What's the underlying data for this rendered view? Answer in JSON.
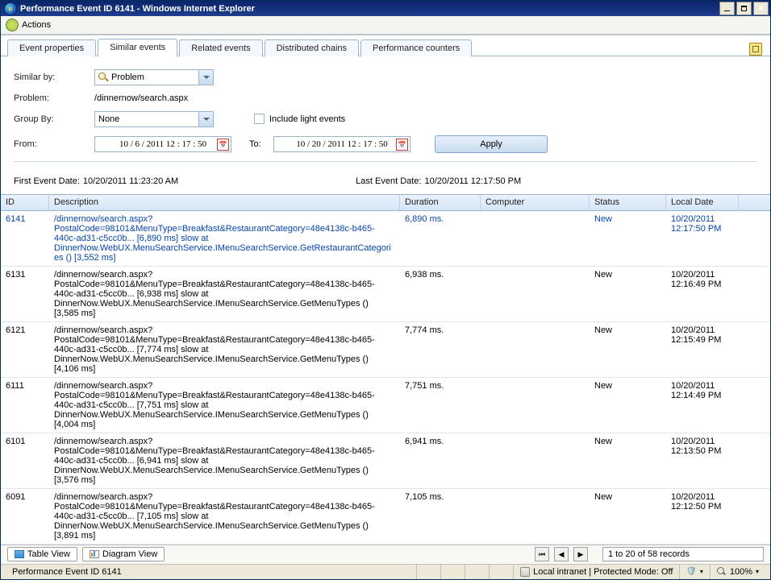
{
  "window": {
    "title": "Performance Event ID 6141 - Windows Internet Explorer"
  },
  "actionbar": {
    "label": "Actions"
  },
  "tabs": {
    "items": [
      {
        "label": "Event properties"
      },
      {
        "label": "Similar events"
      },
      {
        "label": "Related events"
      },
      {
        "label": "Distributed chains"
      },
      {
        "label": "Performance counters"
      }
    ],
    "activeIndex": 1
  },
  "filters": {
    "similarByLabel": "Similar by:",
    "similarByValue": "Problem",
    "problemLabel": "Problem:",
    "problemValue": "/dinnernow/search.aspx",
    "groupByLabel": "Group By:",
    "groupByValue": "None",
    "fromLabel": "From:",
    "fromValue": "10 / 6 / 2011    12 : 17 : 50",
    "toLabel": "To:",
    "toValue": "10 / 20 / 2011    12 : 17 : 50",
    "includeLightLabel": "Include light events",
    "applyLabel": "Apply"
  },
  "info": {
    "firstLabel": "First Event Date:",
    "firstValue": "10/20/2011 11:23:20 AM",
    "lastLabel": "Last Event Date:",
    "lastValue": "10/20/2011 12:17:50 PM"
  },
  "grid": {
    "columns": {
      "id": "ID",
      "desc": "Description",
      "dur": "Duration",
      "comp": "Computer",
      "stat": "Status",
      "date": "Local Date"
    },
    "rows": [
      {
        "id": "6141",
        "link": true,
        "desc": "/dinnernow/search.aspx?PostalCode=98101&MenuType=Breakfast&RestaurantCategory=48e4138c-b465-440c-ad31-c5cc0b... [6,890 ms] slow at DinnerNow.WebUX.MenuSearchService.IMenuSearchService.GetRestaurantCategories () [3,552 ms]",
        "dur": "6,890 ms.",
        "comp": "",
        "stat": "New",
        "date": "10/20/2011 12:17:50 PM"
      },
      {
        "id": "6131",
        "link": false,
        "desc": "/dinnernow/search.aspx?PostalCode=98101&MenuType=Breakfast&RestaurantCategory=48e4138c-b465-440c-ad31-c5cc0b... [6,938 ms] slow at DinnerNow.WebUX.MenuSearchService.IMenuSearchService.GetMenuTypes () [3,585 ms]",
        "dur": "6,938 ms.",
        "comp": "",
        "stat": "New",
        "date": "10/20/2011 12:16:49 PM"
      },
      {
        "id": "6121",
        "link": false,
        "desc": "/dinnernow/search.aspx?PostalCode=98101&MenuType=Breakfast&RestaurantCategory=48e4138c-b465-440c-ad31-c5cc0b... [7,774 ms] slow at DinnerNow.WebUX.MenuSearchService.IMenuSearchService.GetMenuTypes () [4,106 ms]",
        "dur": "7,774 ms.",
        "comp": "",
        "stat": "New",
        "date": "10/20/2011 12:15:49 PM"
      },
      {
        "id": "6111",
        "link": false,
        "desc": "/dinnernow/search.aspx?PostalCode=98101&MenuType=Breakfast&RestaurantCategory=48e4138c-b465-440c-ad31-c5cc0b... [7,751 ms] slow at DinnerNow.WebUX.MenuSearchService.IMenuSearchService.GetMenuTypes () [4,004 ms]",
        "dur": "7,751 ms.",
        "comp": "",
        "stat": "New",
        "date": "10/20/2011 12:14:49 PM"
      },
      {
        "id": "6101",
        "link": false,
        "desc": "/dinnernow/search.aspx?PostalCode=98101&MenuType=Breakfast&RestaurantCategory=48e4138c-b465-440c-ad31-c5cc0b... [6,941 ms] slow at DinnerNow.WebUX.MenuSearchService.IMenuSearchService.GetMenuTypes () [3,576 ms]",
        "dur": "6,941 ms.",
        "comp": "",
        "stat": "New",
        "date": "10/20/2011 12:13:50 PM"
      },
      {
        "id": "6091",
        "link": false,
        "desc": "/dinnernow/search.aspx?PostalCode=98101&MenuType=Breakfast&RestaurantCategory=48e4138c-b465-440c-ad31-c5cc0b... [7,105 ms] slow at DinnerNow.WebUX.MenuSearchService.IMenuSearchService.GetMenuTypes () [3,891 ms]",
        "dur": "7,105 ms.",
        "comp": "",
        "stat": "New",
        "date": "10/20/2011 12:12:50 PM"
      }
    ]
  },
  "pager": {
    "tableView": "Table View",
    "diagramView": "Diagram View",
    "records": "1 to 20 of 58 records"
  },
  "statusbar": {
    "left": "Performance Event ID 6141",
    "zone": "Local intranet | Protected Mode: Off",
    "zoom": "100%"
  }
}
